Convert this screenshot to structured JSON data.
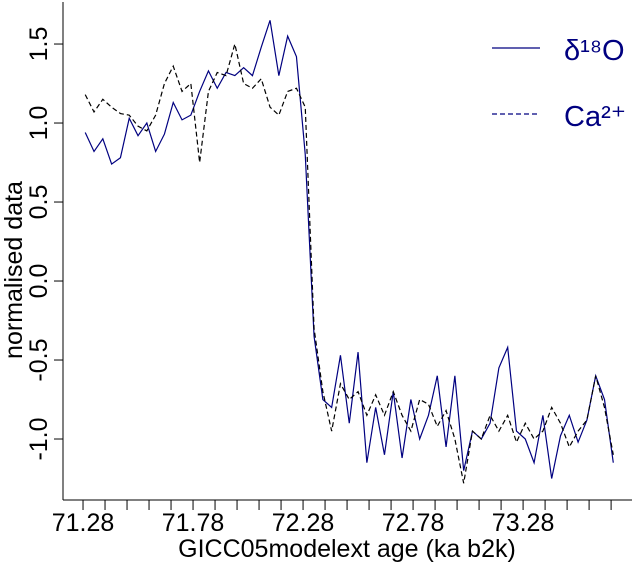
{
  "chart_data": {
    "type": "line",
    "xlabel": "GICC05modelext age (ka b2k)",
    "ylabel": "normalised data",
    "x": [
      71.29,
      71.33,
      71.37,
      71.41,
      71.45,
      71.49,
      71.53,
      71.57,
      71.61,
      71.65,
      71.69,
      71.73,
      71.77,
      71.81,
      71.85,
      71.89,
      71.93,
      71.97,
      72.01,
      72.05,
      72.09,
      72.13,
      72.17,
      72.21,
      72.25,
      72.29,
      72.33,
      72.37,
      72.41,
      72.45,
      72.49,
      72.53,
      72.57,
      72.61,
      72.65,
      72.69,
      72.73,
      72.77,
      72.81,
      72.85,
      72.89,
      72.93,
      72.97,
      73.01,
      73.05,
      73.09,
      73.13,
      73.17,
      73.21,
      73.25,
      73.29,
      73.33,
      73.37,
      73.41,
      73.45,
      73.49,
      73.53,
      73.57,
      73.61,
      73.65,
      73.69
    ],
    "series": [
      {
        "name": "δ¹⁸O",
        "color": "#000080",
        "dash": false,
        "values": [
          0.94,
          0.82,
          0.9,
          0.74,
          0.78,
          1.03,
          0.92,
          1.0,
          0.82,
          0.93,
          1.13,
          1.02,
          1.05,
          1.2,
          1.33,
          1.22,
          1.32,
          1.3,
          1.35,
          1.3,
          1.48,
          1.65,
          1.3,
          1.55,
          1.42,
          0.8,
          -0.35,
          -0.75,
          -0.8,
          -0.47,
          -0.9,
          -0.45,
          -1.15,
          -0.8,
          -1.1,
          -0.7,
          -1.12,
          -0.75,
          -1.0,
          -0.85,
          -0.6,
          -1.05,
          -0.6,
          -1.2,
          -0.95,
          -1.0,
          -0.9,
          -0.55,
          -0.42,
          -0.95,
          -1.0,
          -1.15,
          -0.85,
          -1.25,
          -0.98,
          -0.85,
          -1.02,
          -0.88,
          -0.6,
          -0.75,
          -1.15
        ]
      },
      {
        "name": "Ca²⁺",
        "color": "#000000",
        "dash": true,
        "values": [
          1.18,
          1.07,
          1.15,
          1.1,
          1.06,
          1.05,
          0.98,
          0.95,
          1.05,
          1.25,
          1.36,
          1.2,
          1.25,
          0.75,
          1.2,
          1.32,
          1.3,
          1.5,
          1.25,
          1.22,
          1.28,
          1.1,
          1.05,
          1.2,
          1.22,
          1.1,
          -0.3,
          -0.7,
          -0.95,
          -0.65,
          -0.75,
          -0.7,
          -0.85,
          -0.72,
          -0.85,
          -0.7,
          -0.85,
          -0.95,
          -0.75,
          -0.78,
          -0.92,
          -0.82,
          -1.0,
          -1.28,
          -0.95,
          -1.0,
          -0.85,
          -0.95,
          -0.85,
          -1.02,
          -0.9,
          -1.0,
          -0.95,
          -0.8,
          -0.9,
          -1.05,
          -0.95,
          -0.88,
          -0.6,
          -0.8,
          -1.1
        ]
      }
    ],
    "xlim": [
      71.189,
      73.775
    ],
    "ylim": [
      -1.386,
      1.766
    ],
    "xticks": [
      71.28,
      71.78,
      72.28,
      72.78,
      73.28
    ],
    "xminorticks": [
      71.38,
      71.48,
      71.58,
      71.68,
      71.88,
      71.98,
      72.08,
      72.18,
      72.38,
      72.48,
      72.58,
      72.68,
      72.88,
      72.98,
      73.08,
      73.18,
      73.38,
      73.48,
      73.58,
      73.68
    ],
    "yticks": [
      1.5,
      {
        "value": 1,
        "label": "1.0"
      },
      0.5,
      {
        "value": 0,
        "label": "0.0"
      },
      -0.5,
      {
        "value": -1,
        "label": "-1.0"
      }
    ],
    "legend": "top-right"
  }
}
